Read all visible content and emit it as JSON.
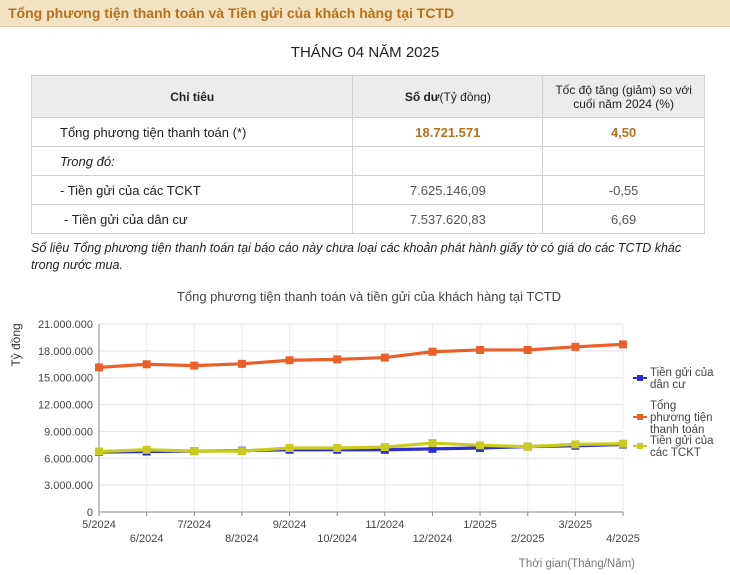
{
  "header": {
    "title": "Tổng phương tiện thanh toán và Tiền gửi của khách hàng tại TCTD"
  },
  "period": "THÁNG 04 NĂM 2025",
  "table": {
    "head": {
      "indicator": "Chỉ tiêu",
      "balance_bold": "Số dư",
      "balance_unit": "(Tỷ đồng)",
      "rate": "Tốc độ tăng (giảm) so với cuối năm 2024 (%)"
    },
    "rows": [
      {
        "name": "Tổng phương tiện thanh toán (*)",
        "balance": "18.721.571",
        "rate": "4,50"
      },
      {
        "name": "Trong đó:",
        "balance": "",
        "rate": ""
      },
      {
        "name": "- Tiền gửi của các TCKT",
        "balance": "7.625.146,09",
        "rate": "-0,55"
      },
      {
        "name": "- Tiền gửi của dân cư",
        "balance": "7.537.620,83",
        "rate": "6,69"
      }
    ]
  },
  "note": "Số liệu Tổng phương tiện thanh toán tại báo cáo này chưa loại các khoản phát hành giấy tờ có giá do các TCTD khác trong nước mua.",
  "chart_data": {
    "type": "line",
    "title": "Tổng phương tiện thanh toán và tiền gửi của khách hàng tại TCTD",
    "xlabel": "Thời gian(Tháng/Năm)",
    "ylabel": "Tỷ đồng",
    "ylim": [
      0,
      21000000
    ],
    "yticks": [
      0,
      3000000,
      6000000,
      9000000,
      12000000,
      15000000,
      18000000,
      21000000
    ],
    "ytick_labels": [
      "0",
      "3.000.000",
      "6.000.000",
      "9.000.000",
      "12.000.000",
      "15.000.000",
      "18.000.000",
      "21.000.000"
    ],
    "categories": [
      "5/2024",
      "6/2024",
      "7/2024",
      "8/2024",
      "9/2024",
      "10/2024",
      "11/2024",
      "12/2024",
      "1/2025",
      "2/2025",
      "3/2025",
      "4/2025"
    ],
    "grid": true,
    "legend": "right",
    "series": [
      {
        "name": "Tiền gửi của dân cư",
        "color": "#2d2fd0",
        "values": [
          6700000,
          6750000,
          6800000,
          6850000,
          6950000,
          6950000,
          6950000,
          7050000,
          7150000,
          7300000,
          7400000,
          7537620
        ]
      },
      {
        "name": "Tổng phương tiện thanh toán",
        "color": "#ea5f2a",
        "values": [
          16150000,
          16500000,
          16350000,
          16550000,
          16950000,
          17050000,
          17250000,
          17900000,
          18100000,
          18100000,
          18450000,
          18721571
        ]
      },
      {
        "name": "Tiền gửi của các TCKT",
        "color": "#c9cc1f",
        "values": [
          6750000,
          6950000,
          6800000,
          6800000,
          7150000,
          7150000,
          7250000,
          7700000,
          7450000,
          7300000,
          7550000,
          7625146
        ]
      }
    ]
  }
}
